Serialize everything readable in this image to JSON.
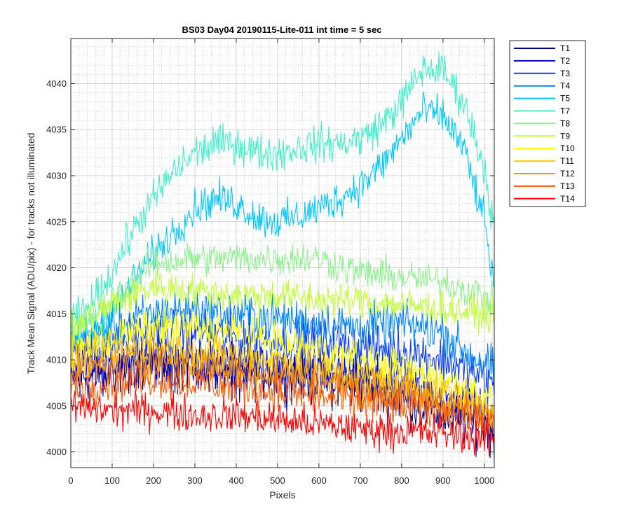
{
  "chart_data": {
    "type": "line",
    "title": "BS03 Day04 20190115-Lite-011 int time = 5 sec",
    "xlabel": "Pixels",
    "ylabel": "Track Mean Signal (ADU/pix) - for tracks not illuminated",
    "xlim": [
      0,
      1024
    ],
    "ylim": [
      3998.3,
      4044.9
    ],
    "xticks": [
      "0",
      "100",
      "200",
      "300",
      "400",
      "500",
      "600",
      "700",
      "800",
      "900",
      "1000"
    ],
    "yticks": [
      "4000",
      "4005",
      "4010",
      "4015",
      "4020",
      "4025",
      "4030",
      "4035",
      "4040"
    ],
    "grid": "major and minor, dotted",
    "legend_position": "outside-right",
    "noise_note": "series are noisy; values are approximate smooth trends with visible noise amplitude",
    "series": [
      {
        "name": "T1",
        "color": "#00008f",
        "noise": 2.2,
        "x": [
          0,
          100,
          200,
          300,
          400,
          500,
          600,
          700,
          800,
          900,
          1000,
          1024
        ],
        "y": [
          4008,
          4009,
          4010,
          4009.5,
          4009,
          4008.5,
          4008,
          4007,
          4006,
          4004,
          4003,
          4002
        ]
      },
      {
        "name": "T2",
        "color": "#0000cc",
        "noise": 2.2,
        "x": [
          0,
          100,
          200,
          300,
          400,
          500,
          600,
          700,
          800,
          900,
          1000,
          1024
        ],
        "y": [
          4009,
          4009,
          4010,
          4009.5,
          4009,
          4008.5,
          4008.5,
          4008,
          4007,
          4006,
          4004,
          4003
        ]
      },
      {
        "name": "T3",
        "color": "#0a3cff",
        "noise": 2.0,
        "x": [
          0,
          100,
          200,
          300,
          400,
          500,
          600,
          700,
          800,
          900,
          1000,
          1024
        ],
        "y": [
          4011,
          4012,
          4013,
          4013,
          4012.5,
          4012,
          4012,
          4011.5,
          4011,
          4010,
          4008,
          4007
        ]
      },
      {
        "name": "T4",
        "color": "#0084ff",
        "noise": 1.8,
        "x": [
          0,
          100,
          200,
          300,
          400,
          500,
          600,
          700,
          800,
          900,
          950,
          1024
        ],
        "y": [
          4012,
          4013.5,
          4015,
          4015.5,
          4015,
          4014.5,
          4014,
          4013.5,
          4014,
          4013,
          4011,
          4009
        ]
      },
      {
        "name": "T5",
        "color": "#00c8ff",
        "noise": 1.5,
        "x": [
          0,
          50,
          100,
          150,
          200,
          250,
          300,
          350,
          400,
          450,
          500,
          550,
          600,
          650,
          700,
          750,
          800,
          850,
          900,
          950,
          1000,
          1024
        ],
        "y": [
          4012,
          4013,
          4015,
          4018.5,
          4021.5,
          4024,
          4026.5,
          4027.5,
          4027,
          4025.5,
          4025,
          4025.5,
          4026.5,
          4027.5,
          4029,
          4031,
          4034,
          4037,
          4036.5,
          4033,
          4025,
          4018
        ]
      },
      {
        "name": "T7",
        "color": "#40f0c8",
        "noise": 1.5,
        "x": [
          0,
          50,
          100,
          150,
          200,
          250,
          300,
          350,
          400,
          450,
          500,
          550,
          600,
          650,
          700,
          750,
          800,
          850,
          900,
          950,
          1000,
          1024
        ],
        "y": [
          4014,
          4016,
          4019.5,
          4024,
          4027.5,
          4030.5,
          4032.5,
          4033.5,
          4033.5,
          4032.5,
          4032.5,
          4033,
          4033.5,
          4033.5,
          4034,
          4035.5,
          4038,
          4041.5,
          4041.5,
          4038,
          4031,
          4024
        ]
      },
      {
        "name": "T8",
        "color": "#90f090",
        "noise": 1.4,
        "x": [
          0,
          100,
          200,
          300,
          400,
          500,
          600,
          700,
          800,
          900,
          1000,
          1024
        ],
        "y": [
          4013,
          4016.5,
          4020.5,
          4021,
          4021,
          4021,
          4021,
          4019.5,
          4019,
          4018.5,
          4017,
          4016
        ]
      },
      {
        "name": "T9",
        "color": "#c0ff30",
        "noise": 1.4,
        "x": [
          0,
          100,
          200,
          300,
          400,
          500,
          600,
          700,
          800,
          900,
          1000,
          1024
        ],
        "y": [
          4013,
          4016,
          4018,
          4017.5,
          4017,
          4017,
          4016.5,
          4016.5,
          4016,
          4015.5,
          4015,
          4014.5
        ]
      },
      {
        "name": "T10",
        "color": "#ffff00",
        "noise": 1.6,
        "x": [
          0,
          100,
          200,
          300,
          400,
          500,
          600,
          700,
          800,
          900,
          1000,
          1024
        ],
        "y": [
          4011,
          4012.5,
          4013.5,
          4013.5,
          4013,
          4012,
          4011,
          4010,
          4009,
          4008,
          4006,
          4005
        ]
      },
      {
        "name": "T11",
        "color": "#ffc800",
        "noise": 1.6,
        "x": [
          0,
          100,
          200,
          300,
          400,
          500,
          600,
          700,
          800,
          900,
          1000,
          1024
        ],
        "y": [
          4010,
          4011,
          4011.5,
          4011,
          4010.5,
          4010,
          4009,
          4008,
          4007.5,
          4006.5,
          4005,
          4004.5
        ]
      },
      {
        "name": "T12",
        "color": "#ff9600",
        "noise": 1.6,
        "x": [
          0,
          100,
          200,
          300,
          400,
          500,
          600,
          700,
          800,
          900,
          1000,
          1024
        ],
        "y": [
          4008.5,
          4009.5,
          4010,
          4009.5,
          4009,
          4008.5,
          4008,
          4007,
          4006.5,
          4005.5,
          4004,
          4003.5
        ]
      },
      {
        "name": "T13",
        "color": "#ff5a00",
        "noise": 1.6,
        "x": [
          0,
          100,
          200,
          300,
          400,
          500,
          600,
          700,
          800,
          900,
          1000,
          1024
        ],
        "y": [
          4007,
          4007.5,
          4008,
          4007.5,
          4007,
          4006.5,
          4006,
          4005.5,
          4005,
          4004.5,
          4003.5,
          4003
        ]
      },
      {
        "name": "T14",
        "color": "#ff0000",
        "noise": 1.5,
        "x": [
          0,
          100,
          200,
          300,
          400,
          500,
          600,
          700,
          800,
          900,
          1000,
          1024
        ],
        "y": [
          4005,
          4004.5,
          4004.5,
          4004,
          4004,
          4003.5,
          4003,
          4002.5,
          4002.3,
          4002,
          4001.5,
          4001.5
        ]
      }
    ]
  }
}
